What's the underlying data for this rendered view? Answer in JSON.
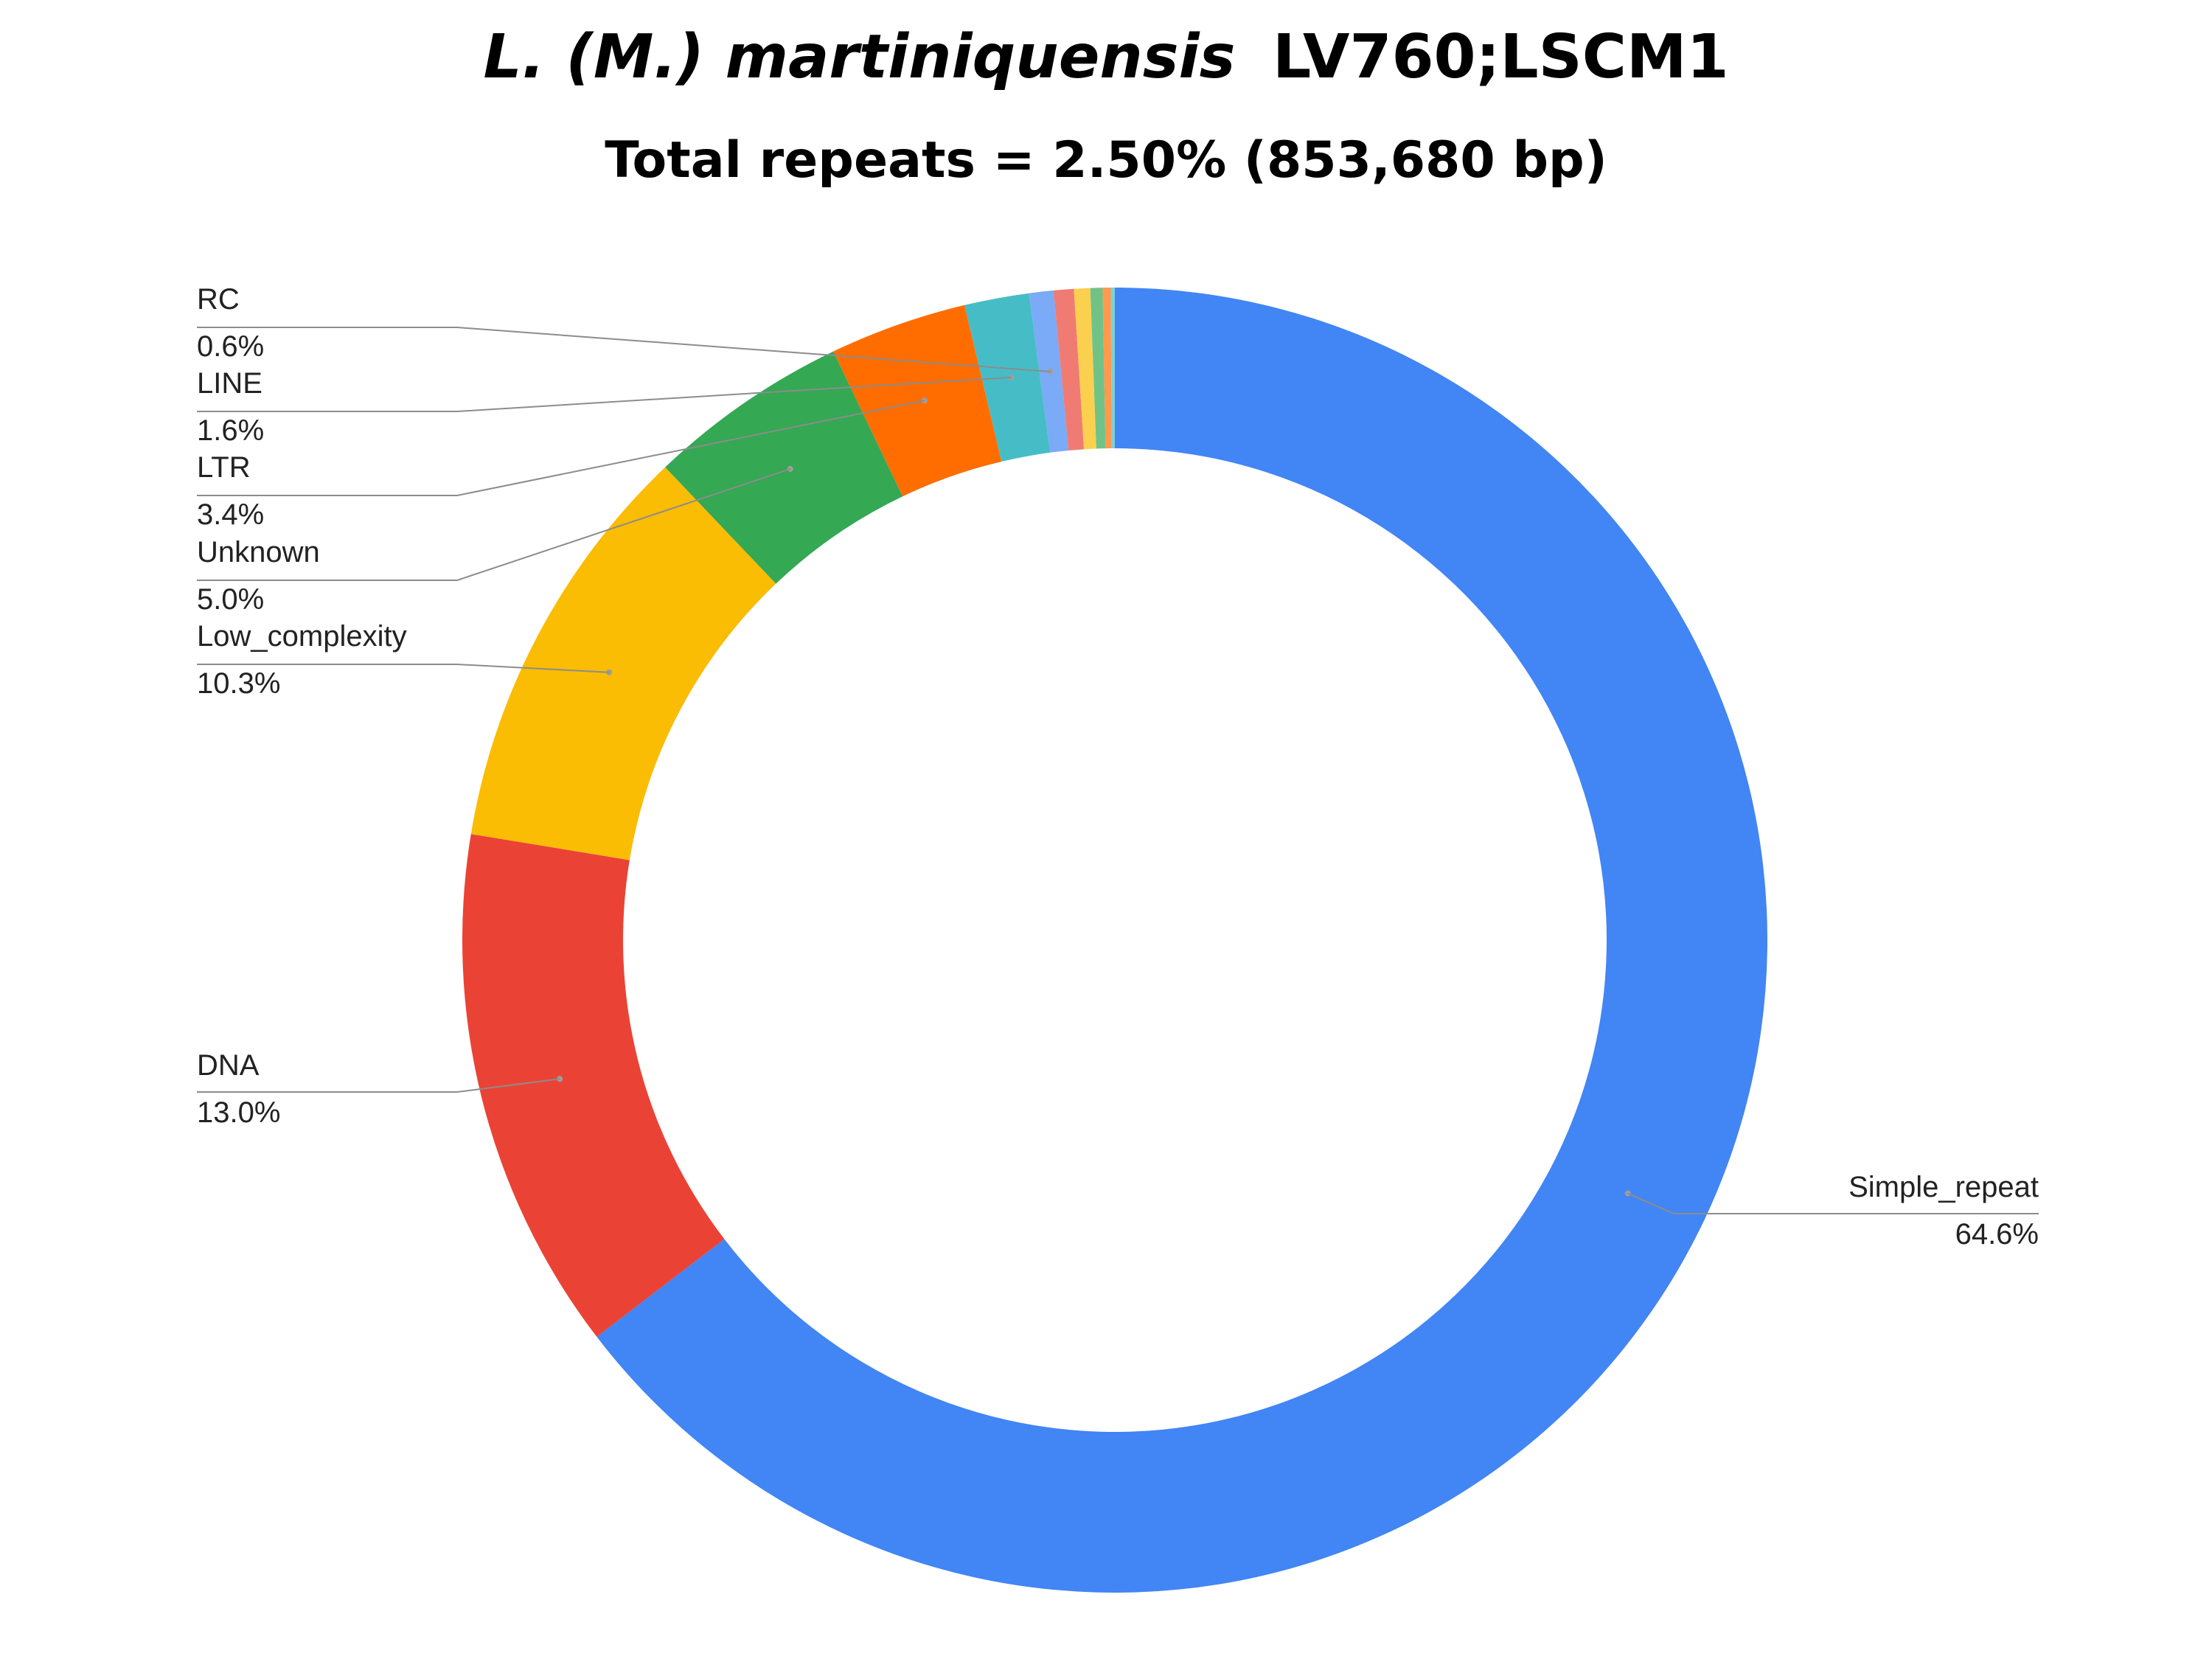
{
  "title": {
    "italic_part": "L. (M.) martiniquensis",
    "normal_part": "LV760;LSCM1",
    "subtitle": "Total repeats = 2.50% (853,680 bp)"
  },
  "chart_data": {
    "type": "pie",
    "donut": true,
    "legend": "none",
    "slices": [
      {
        "label": "Simple_repeat",
        "value": 64.6,
        "display": "64.6%",
        "color": "#4285F4"
      },
      {
        "label": "DNA",
        "value": 13.0,
        "display": "13.0%",
        "color": "#EA4335"
      },
      {
        "label": "Low_complexity",
        "value": 10.3,
        "display": "10.3%",
        "color": "#FBBC04"
      },
      {
        "label": "Unknown",
        "value": 5.0,
        "display": "5.0%",
        "color": "#34A853"
      },
      {
        "label": "LTR",
        "value": 3.4,
        "display": "3.4%",
        "color": "#FF6D01"
      },
      {
        "label": "LINE",
        "value": 1.6,
        "display": "1.6%",
        "color": "#46BDC6"
      },
      {
        "label": "RC",
        "value": 0.6,
        "display": "0.6%",
        "color": "#7BAAF7"
      },
      {
        "label": "",
        "value": 0.5,
        "display": "",
        "color": "#F07B72"
      },
      {
        "label": "",
        "value": 0.4,
        "display": "",
        "color": "#FCD04F"
      },
      {
        "label": "",
        "value": 0.3,
        "display": "",
        "color": "#71C287"
      },
      {
        "label": "",
        "value": 0.2,
        "display": "",
        "color": "#FF994D"
      },
      {
        "label": "",
        "value": 0.1,
        "display": "",
        "color": "#7ED1D7"
      }
    ]
  }
}
